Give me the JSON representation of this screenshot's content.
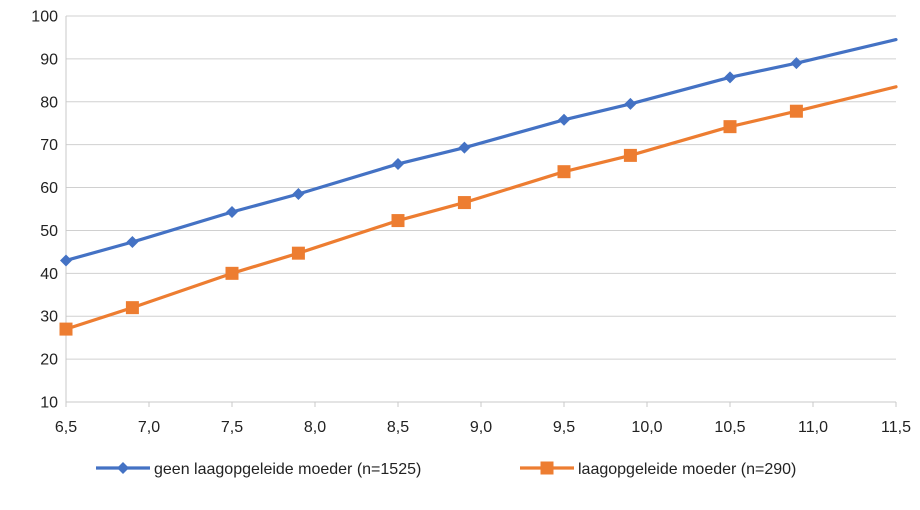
{
  "chart_data": {
    "type": "line",
    "title": "",
    "xlabel": "",
    "ylabel": "",
    "xlim": [
      6.5,
      11.5
    ],
    "ylim": [
      10,
      100
    ],
    "x_ticks": [
      "6,5",
      "7,0",
      "7,5",
      "8,0",
      "8,5",
      "9,0",
      "9,5",
      "10,0",
      "10,5",
      "11,0",
      "11,5"
    ],
    "x_tick_values": [
      6.5,
      7.0,
      7.5,
      8.0,
      8.5,
      9.0,
      9.5,
      10.0,
      10.5,
      11.0,
      11.5
    ],
    "y_ticks": [
      10,
      20,
      30,
      40,
      50,
      60,
      70,
      80,
      90,
      100
    ],
    "grid": "horizontal",
    "legend_position": "bottom",
    "series": [
      {
        "name": "geen laagopgeleide moeder (n=1525)",
        "color": "#4472C4",
        "marker": "diamond",
        "x": [
          6.5,
          6.9,
          7.5,
          7.9,
          8.5,
          8.9,
          9.5,
          9.9,
          10.5,
          10.9
        ],
        "y": [
          43,
          47.3,
          54.3,
          58.5,
          65.5,
          69.3,
          75.8,
          79.5,
          85.7,
          89
        ],
        "line_end": [
          11.5,
          94.5
        ]
      },
      {
        "name": "laagopgeleide moeder (n=290)",
        "color": "#ED7D31",
        "marker": "square",
        "x": [
          6.5,
          6.9,
          7.5,
          7.9,
          8.5,
          8.9,
          9.5,
          9.9,
          10.5,
          10.9
        ],
        "y": [
          27,
          32,
          40,
          44.7,
          52.3,
          56.5,
          63.7,
          67.5,
          74.2,
          77.8
        ],
        "line_end": [
          11.5,
          83.5
        ]
      }
    ]
  }
}
